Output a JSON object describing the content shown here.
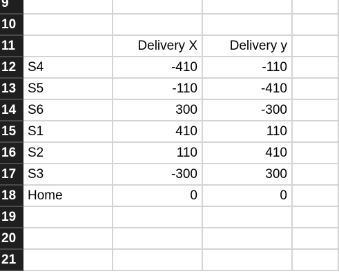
{
  "rows": [
    {
      "num": "9",
      "cells": [
        "",
        "",
        "",
        ""
      ]
    },
    {
      "num": "10",
      "cells": [
        "",
        "",
        "",
        ""
      ]
    },
    {
      "num": "11",
      "cells": [
        "",
        "Delivery X",
        "Delivery y",
        ""
      ]
    },
    {
      "num": "12",
      "cells": [
        "S4",
        "-410",
        "-110",
        ""
      ]
    },
    {
      "num": "13",
      "cells": [
        "S5",
        "-110",
        "-410",
        ""
      ]
    },
    {
      "num": "14",
      "cells": [
        "S6",
        "300",
        "-300",
        ""
      ]
    },
    {
      "num": "15",
      "cells": [
        "S1",
        "410",
        "110",
        ""
      ]
    },
    {
      "num": "16",
      "cells": [
        "S2",
        "110",
        "410",
        ""
      ]
    },
    {
      "num": "17",
      "cells": [
        "S3",
        "-300",
        "300",
        ""
      ]
    },
    {
      "num": "18",
      "cells": [
        "Home",
        "0",
        "0",
        ""
      ]
    },
    {
      "num": "19",
      "cells": [
        "",
        "",
        "",
        ""
      ]
    },
    {
      "num": "20",
      "cells": [
        "",
        "",
        "",
        ""
      ]
    },
    {
      "num": "21",
      "cells": [
        "",
        "",
        "",
        ""
      ]
    }
  ]
}
